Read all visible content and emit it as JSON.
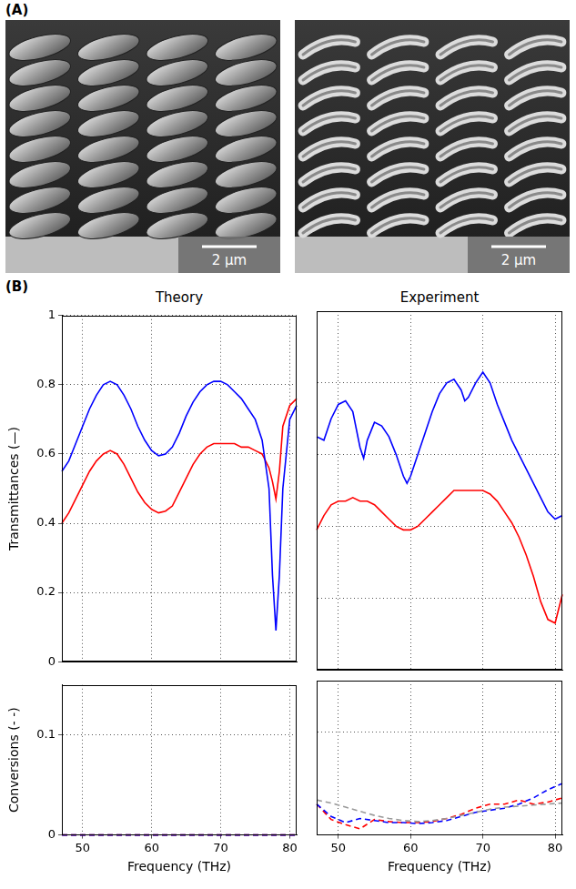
{
  "panel_a": {
    "label": "(A)",
    "images": [
      {
        "style": "slabs",
        "scale_bar": "2 µm"
      },
      {
        "style": "helices",
        "scale_bar": "2 µm"
      }
    ]
  },
  "panel_b": {
    "label": "(B)"
  },
  "chart_data": [
    {
      "type": "line",
      "title": "Theory",
      "y_label": "Transmittances (—)",
      "x": [
        47,
        48,
        49,
        50,
        51,
        52,
        53,
        54,
        55,
        56,
        57,
        58,
        59,
        60,
        61,
        62,
        63,
        64,
        65,
        66,
        67,
        68,
        69,
        70,
        71,
        72,
        73,
        74,
        75,
        76,
        77,
        77.5,
        78,
        78.5,
        79,
        80,
        81
      ],
      "series": [
        {
          "color": "#0000ff",
          "line_style": "solid",
          "marker": "none",
          "values": [
            0.55,
            0.58,
            0.63,
            0.68,
            0.73,
            0.77,
            0.8,
            0.81,
            0.8,
            0.77,
            0.73,
            0.68,
            0.64,
            0.61,
            0.595,
            0.6,
            0.62,
            0.66,
            0.71,
            0.75,
            0.78,
            0.8,
            0.81,
            0.81,
            0.8,
            0.78,
            0.76,
            0.73,
            0.7,
            0.64,
            0.5,
            0.25,
            0.09,
            0.25,
            0.5,
            0.7,
            0.74
          ]
        },
        {
          "color": "#ff0000",
          "line_style": "solid",
          "marker": "none",
          "values": [
            0.4,
            0.43,
            0.47,
            0.51,
            0.55,
            0.58,
            0.6,
            0.61,
            0.6,
            0.57,
            0.53,
            0.49,
            0.46,
            0.44,
            0.43,
            0.435,
            0.45,
            0.49,
            0.53,
            0.57,
            0.6,
            0.62,
            0.63,
            0.63,
            0.63,
            0.63,
            0.62,
            0.62,
            0.61,
            0.6,
            0.56,
            0.52,
            0.47,
            0.55,
            0.68,
            0.74,
            0.76
          ]
        }
      ],
      "xlim": [
        47,
        81
      ],
      "xticks": [
        50,
        60,
        70,
        80
      ],
      "ylim": [
        0,
        1
      ],
      "yticks": [
        0,
        0.2,
        0.4,
        0.6,
        0.8,
        1
      ],
      "grid": true,
      "tick_labels": "y"
    },
    {
      "type": "line",
      "title": "Experiment",
      "x": [
        47,
        48,
        49,
        50,
        51,
        52,
        53,
        53.5,
        54,
        55,
        56,
        57,
        58,
        59,
        59.5,
        60,
        61,
        62,
        63,
        64,
        65,
        66,
        67,
        67.5,
        68,
        69,
        70,
        71,
        72,
        73,
        74,
        75,
        76,
        77,
        78,
        79,
        80,
        81
      ],
      "series": [
        {
          "color": "#0000ff",
          "line_style": "solid",
          "marker": "none",
          "values": [
            0.65,
            0.64,
            0.7,
            0.74,
            0.75,
            0.72,
            0.62,
            0.59,
            0.64,
            0.69,
            0.68,
            0.65,
            0.6,
            0.54,
            0.52,
            0.54,
            0.6,
            0.66,
            0.72,
            0.77,
            0.8,
            0.81,
            0.78,
            0.75,
            0.76,
            0.8,
            0.83,
            0.8,
            0.74,
            0.69,
            0.64,
            0.6,
            0.56,
            0.52,
            0.48,
            0.44,
            0.42,
            0.43
          ]
        },
        {
          "color": "#ff0000",
          "line_style": "solid",
          "marker": "none",
          "values": [
            0.39,
            0.43,
            0.46,
            0.47,
            0.47,
            0.48,
            0.47,
            0.47,
            0.47,
            0.46,
            0.44,
            0.42,
            0.4,
            0.39,
            0.39,
            0.39,
            0.4,
            0.42,
            0.44,
            0.46,
            0.48,
            0.5,
            0.5,
            0.5,
            0.5,
            0.5,
            0.5,
            0.49,
            0.47,
            0.44,
            0.41,
            0.37,
            0.32,
            0.26,
            0.19,
            0.14,
            0.13,
            0.21
          ]
        }
      ],
      "xlim": [
        47,
        81
      ],
      "xticks": [
        50,
        60,
        70,
        80
      ],
      "ylim": [
        0,
        1
      ],
      "yticks": [
        0,
        0.2,
        0.4,
        0.6,
        0.8,
        1
      ],
      "grid": true,
      "tick_labels": false
    },
    {
      "type": "line",
      "y_label": "Conversions (- -)",
      "x_label": "Frequency (THz)",
      "x": [
        47,
        81
      ],
      "series": [
        {
          "color": "#0000ff",
          "line_style": "dashed",
          "marker": "none",
          "values": [
            0,
            0
          ]
        },
        {
          "color": "#ff0000",
          "line_style": "dashed",
          "marker": "none",
          "values": [
            0,
            0
          ]
        }
      ],
      "xlim": [
        47,
        81
      ],
      "xticks": [
        50,
        60,
        70,
        80
      ],
      "ylim": [
        0,
        0.15
      ],
      "yticks": [
        0,
        0.1
      ],
      "grid": true,
      "tick_labels": true
    },
    {
      "type": "line",
      "x_label": "Frequency (THz)",
      "x": [
        47,
        49,
        51,
        53,
        55,
        57,
        59,
        61,
        63,
        65,
        67,
        69,
        71,
        73,
        75,
        77,
        79,
        81
      ],
      "series": [
        {
          "color": "#999999",
          "line_style": "dashed",
          "marker": "none",
          "values": [
            0.034,
            0.031,
            0.027,
            0.023,
            0.019,
            0.016,
            0.014,
            0.013,
            0.014,
            0.016,
            0.019,
            0.022,
            0.025,
            0.027,
            0.028,
            0.029,
            0.03,
            0.031
          ]
        },
        {
          "color": "#0000ff",
          "line_style": "dashed",
          "marker": "none",
          "values": [
            0.03,
            0.018,
            0.012,
            0.016,
            0.014,
            0.012,
            0.012,
            0.011,
            0.012,
            0.014,
            0.018,
            0.022,
            0.024,
            0.026,
            0.03,
            0.036,
            0.044,
            0.05
          ]
        },
        {
          "color": "#ff0000",
          "line_style": "dashed",
          "marker": "none",
          "values": [
            0.03,
            0.015,
            0.01,
            0.006,
            0.015,
            0.013,
            0.012,
            0.012,
            0.013,
            0.016,
            0.02,
            0.026,
            0.03,
            0.03,
            0.034,
            0.03,
            0.032,
            0.036
          ]
        }
      ],
      "xlim": [
        47,
        81
      ],
      "xticks": [
        50,
        60,
        70,
        80
      ],
      "ylim": [
        0,
        0.15
      ],
      "yticks": [
        0,
        0.1
      ],
      "grid": true,
      "tick_labels": "x"
    }
  ]
}
